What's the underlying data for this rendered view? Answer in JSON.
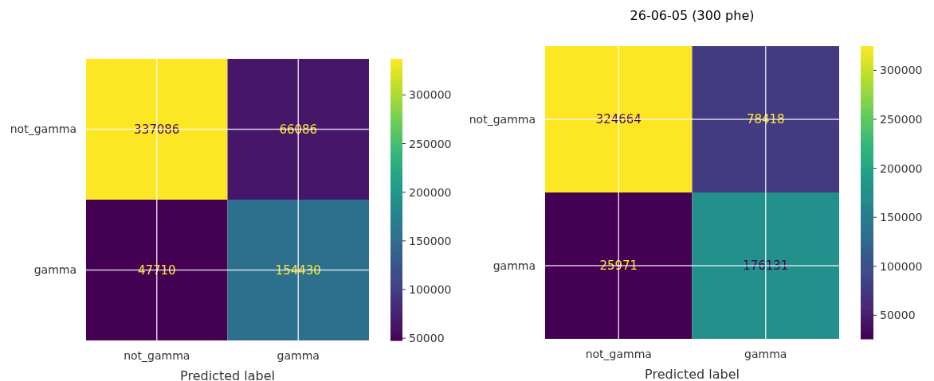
{
  "chart_data": [
    {
      "type": "heatmap",
      "xlabel": "Predicted label",
      "categories": [
        "not_gamma",
        "gamma"
      ],
      "y_categories": [
        "not_gamma",
        "gamma"
      ],
      "cells": [
        [
          337086,
          66086
        ],
        [
          47710,
          154430
        ]
      ],
      "clim": [
        47710,
        337086
      ],
      "cticks": [
        50000,
        100000,
        150000,
        200000,
        250000,
        300000
      ],
      "data_labels": true,
      "grid": true
    },
    {
      "type": "heatmap",
      "title": "26-06-05 (300 phe)",
      "xlabel": "Predicted label",
      "categories": [
        "not_gamma",
        "gamma"
      ],
      "y_categories": [
        "not_gamma",
        "gamma"
      ],
      "cells": [
        [
          324664,
          78418
        ],
        [
          25971,
          176131
        ]
      ],
      "clim": [
        25971,
        324664
      ],
      "cticks": [
        50000,
        100000,
        150000,
        200000,
        250000,
        300000
      ],
      "data_labels": true,
      "grid": true
    }
  ]
}
